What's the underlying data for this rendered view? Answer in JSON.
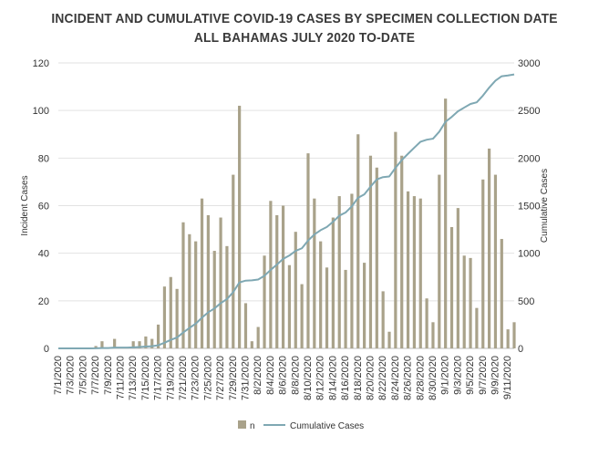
{
  "chart_data": {
    "type": "bar+line",
    "title": "INCIDENT AND CUMULATIVE COVID-19 CASES BY SPECIMEN COLLECTION DATE",
    "subtitle": "ALL BAHAMAS JULY 2020 TO-DATE",
    "ylabel_left": "Incident Cases",
    "ylabel_right": "Cumulative Cases",
    "ylim_left": [
      0,
      120
    ],
    "ylim_right": [
      0,
      3000
    ],
    "yticks_left": [
      "0",
      "20",
      "40",
      "60",
      "80",
      "100",
      "120"
    ],
    "yticks_right": [
      "0",
      "500",
      "1000",
      "1500",
      "2000",
      "2500",
      "3000"
    ],
    "xtick_labels": [
      "7/1/2020",
      "7/3/2020",
      "7/5/2020",
      "7/7/2020",
      "7/9/2020",
      "7/11/2020",
      "7/13/2020",
      "7/15/2020",
      "7/17/2020",
      "7/19/2020",
      "7/21/2020",
      "7/23/2020",
      "7/25/2020",
      "7/27/2020",
      "7/29/2020",
      "7/31/2020",
      "8/2/2020",
      "8/4/2020",
      "8/6/2020",
      "8/8/2020",
      "8/10/2020",
      "8/12/2020",
      "8/14/2020",
      "8/16/2020",
      "8/18/2020",
      "8/20/2020",
      "8/22/2020",
      "8/24/2020",
      "8/26/2020",
      "8/28/2020",
      "8/30/2020",
      "9/1/2020",
      "9/3/2020",
      "9/5/2020",
      "9/7/2020",
      "9/9/2020",
      "9/11/2020"
    ],
    "series": [
      {
        "name": "n",
        "kind": "bar",
        "color": "#a9a28a",
        "values": [
          0,
          0,
          0,
          0,
          0,
          0,
          1,
          3,
          0,
          4,
          0,
          0,
          3,
          3,
          5,
          4,
          10,
          26,
          30,
          25,
          53,
          48,
          45,
          63,
          56,
          41,
          55,
          43,
          73,
          102,
          19,
          3,
          9,
          39,
          62,
          56,
          60,
          35,
          49,
          27,
          82,
          63,
          45,
          34,
          55,
          64,
          33,
          65,
          90,
          36,
          81,
          76,
          24,
          7,
          91,
          81,
          66,
          64,
          63,
          21,
          11,
          73,
          105,
          51,
          59,
          39,
          38,
          17,
          71,
          84,
          73,
          46,
          8,
          11
        ]
      },
      {
        "name": "Cumulative Cases",
        "kind": "line",
        "color": "#7fa8b3",
        "values": [
          0,
          0,
          0,
          0,
          0,
          0,
          1,
          4,
          4,
          8,
          8,
          8,
          11,
          14,
          19,
          23,
          33,
          59,
          89,
          114,
          167,
          215,
          260,
          323,
          379,
          420,
          475,
          518,
          591,
          693,
          712,
          715,
          724,
          763,
          825,
          881,
          941,
          976,
          1025,
          1052,
          1134,
          1197,
          1242,
          1276,
          1331,
          1395,
          1428,
          1493,
          1583,
          1619,
          1700,
          1776,
          1800,
          1807,
          1898,
          1979,
          2045,
          2109,
          2172,
          2193,
          2204,
          2277,
          2382,
          2433,
          2492,
          2531,
          2569,
          2586,
          2657,
          2741,
          2814,
          2860,
          2868,
          2879
        ]
      }
    ],
    "legend": {
      "position": "bottom-center",
      "entries": [
        "n",
        "Cumulative Cases"
      ]
    }
  }
}
